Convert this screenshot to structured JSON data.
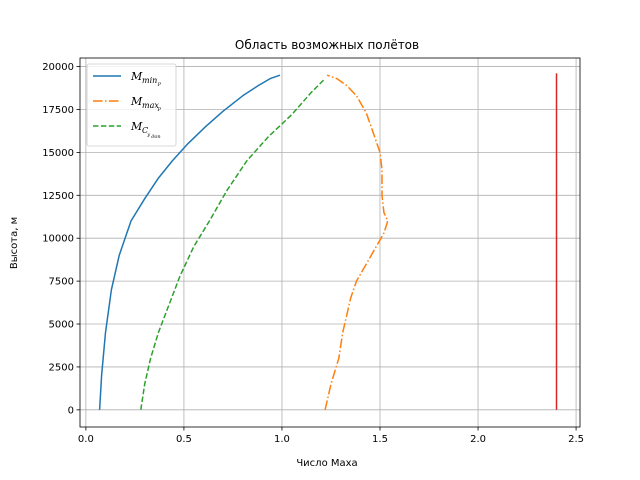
{
  "chart_data": {
    "type": "line",
    "title": "Область возможных полётов",
    "xlabel": "Число Маха",
    "ylabel": "Высота, м",
    "xlim": [
      -0.03,
      2.52
    ],
    "ylim": [
      -1000,
      20500
    ],
    "xticks": [
      0.0,
      0.5,
      1.0,
      1.5,
      2.0,
      2.5
    ],
    "xtick_labels": [
      "0.0",
      "0.5",
      "1.0",
      "1.5",
      "2.0",
      "2.5"
    ],
    "yticks": [
      0,
      2500,
      5000,
      7500,
      10000,
      12500,
      15000,
      17500,
      20000
    ],
    "ytick_labels": [
      "0",
      "2500",
      "5000",
      "7500",
      "10000",
      "12500",
      "15000",
      "17500",
      "20000"
    ],
    "grid": true,
    "legend": {
      "position": "top-left",
      "entries": [
        {
          "main": "M",
          "sub": "min",
          "subsub": "P"
        },
        {
          "main": "M",
          "sub": "max",
          "subsub": "P"
        },
        {
          "main": "M",
          "sub": "C",
          "subsub": "y",
          "subsubsub": "доп"
        }
      ]
    },
    "series": [
      {
        "color": "#1f77b4",
        "dash": "solid",
        "x": [
          0.07,
          0.08,
          0.1,
          0.13,
          0.17,
          0.23,
          0.3,
          0.37,
          0.44,
          0.52,
          0.61,
          0.7,
          0.8,
          0.88,
          0.94,
          0.99
        ],
        "y": [
          0,
          2000,
          4500,
          7000,
          9000,
          11000,
          12300,
          13500,
          14500,
          15500,
          16500,
          17400,
          18300,
          18900,
          19300,
          19500
        ]
      },
      {
        "color": "#ff7f0e",
        "dash": "dashdot",
        "x": [
          1.22,
          1.25,
          1.29,
          1.31,
          1.33,
          1.35,
          1.38,
          1.43,
          1.48,
          1.52,
          1.54,
          1.52,
          1.51,
          1.51,
          1.5,
          1.47,
          1.43,
          1.38,
          1.33,
          1.28,
          1.23
        ],
        "y": [
          0,
          1500,
          3000,
          4500,
          5500,
          6500,
          7500,
          8500,
          9500,
          10300,
          11000,
          11500,
          12500,
          14000,
          15000,
          16000,
          17300,
          18300,
          18900,
          19300,
          19500
        ]
      },
      {
        "color": "#2ca02c",
        "dash": "dashed",
        "x": [
          0.28,
          0.3,
          0.33,
          0.37,
          0.42,
          0.48,
          0.55,
          0.63,
          0.72,
          0.82,
          0.93,
          1.05,
          1.15,
          1.22
        ],
        "y": [
          0,
          1500,
          3000,
          4500,
          6000,
          7800,
          9500,
          11000,
          12800,
          14500,
          15900,
          17200,
          18500,
          19300
        ]
      },
      {
        "color": "#d62728",
        "dash": "solid",
        "x": [
          2.4,
          2.4
        ],
        "y": [
          0,
          19600
        ]
      }
    ]
  }
}
